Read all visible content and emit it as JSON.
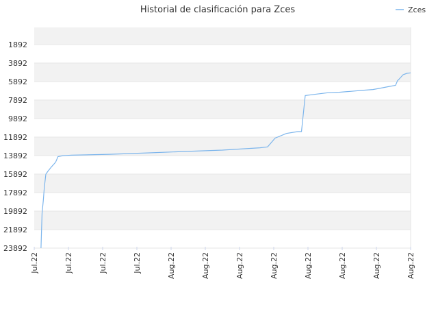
{
  "chart_data": {
    "type": "line",
    "title": "Historial de clasificación para Zces",
    "xlabel": "",
    "ylabel": "",
    "y_reversed": true,
    "ylim": [
      23892,
      0
    ],
    "y_ticks": [
      "1892",
      "3892",
      "5892",
      "7892",
      "9892",
      "11892",
      "13892",
      "15892",
      "17892",
      "19892",
      "21892",
      "23892"
    ],
    "x_tick_labels": [
      "Jul.22",
      "Jul.22",
      "Jul.22",
      "Jul.22",
      "Aug.22",
      "Aug.22",
      "Aug.22",
      "Aug.22",
      "Aug.22",
      "Aug.22",
      "Aug.22",
      "Aug.22"
    ],
    "grid": true,
    "legend": {
      "position": "top-right",
      "entries": [
        "Zces"
      ]
    },
    "series": [
      {
        "name": "Zces",
        "color": "#7cb5ec",
        "points": [
          [
            0.018,
            23892
          ],
          [
            0.019,
            22400
          ],
          [
            0.021,
            20100
          ],
          [
            0.024,
            18800
          ],
          [
            0.027,
            17300
          ],
          [
            0.031,
            15900
          ],
          [
            0.036,
            15600
          ],
          [
            0.046,
            15100
          ],
          [
            0.057,
            14600
          ],
          [
            0.063,
            14000
          ],
          [
            0.076,
            13900
          ],
          [
            0.1,
            13850
          ],
          [
            0.2,
            13750
          ],
          [
            0.3,
            13600
          ],
          [
            0.4,
            13450
          ],
          [
            0.5,
            13300
          ],
          [
            0.6,
            13050
          ],
          [
            0.62,
            12950
          ],
          [
            0.64,
            12000
          ],
          [
            0.67,
            11500
          ],
          [
            0.7,
            11300
          ],
          [
            0.71,
            11300
          ],
          [
            0.72,
            7400
          ],
          [
            0.75,
            7250
          ],
          [
            0.78,
            7100
          ],
          [
            0.81,
            7050
          ],
          [
            0.84,
            6950
          ],
          [
            0.87,
            6850
          ],
          [
            0.9,
            6750
          ],
          [
            0.92,
            6600
          ],
          [
            0.94,
            6450
          ],
          [
            0.96,
            6300
          ],
          [
            0.965,
            5800
          ],
          [
            0.97,
            5600
          ],
          [
            0.98,
            5150
          ],
          [
            0.99,
            5000
          ],
          [
            1.0,
            4950
          ]
        ]
      }
    ]
  }
}
